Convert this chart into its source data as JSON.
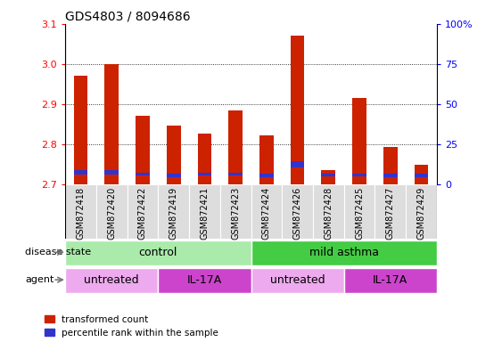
{
  "title": "GDS4803 / 8094686",
  "samples": [
    "GSM872418",
    "GSM872420",
    "GSM872422",
    "GSM872419",
    "GSM872421",
    "GSM872423",
    "GSM872424",
    "GSM872426",
    "GSM872428",
    "GSM872425",
    "GSM872427",
    "GSM872429"
  ],
  "red_values": [
    2.97,
    3.0,
    2.87,
    2.845,
    2.825,
    2.885,
    2.822,
    3.07,
    2.735,
    2.915,
    2.793,
    2.748
  ],
  "blue_bottom": [
    2.724,
    2.724,
    2.721,
    2.717,
    2.721,
    2.721,
    2.717,
    2.741,
    2.719,
    2.719,
    2.717,
    2.717
  ],
  "blue_heights": [
    0.01,
    0.01,
    0.008,
    0.01,
    0.008,
    0.008,
    0.008,
    0.015,
    0.008,
    0.008,
    0.01,
    0.008
  ],
  "y_min": 2.7,
  "y_max": 3.1,
  "y_ticks_red": [
    2.7,
    2.8,
    2.9,
    3.0,
    3.1
  ],
  "y_ticks_blue": [
    0,
    25,
    50,
    75,
    100
  ],
  "bar_color": "#cc2200",
  "blue_color": "#3333cc",
  "grid_lines": [
    2.8,
    2.9,
    3.0
  ],
  "disease_state_groups": [
    {
      "label": "control",
      "start": 0,
      "end": 6,
      "color": "#aaeaaa"
    },
    {
      "label": "mild asthma",
      "start": 6,
      "end": 12,
      "color": "#44cc44"
    }
  ],
  "agent_groups": [
    {
      "label": "untreated",
      "start": 0,
      "end": 3,
      "color": "#eeaaee"
    },
    {
      "label": "IL-17A",
      "start": 3,
      "end": 6,
      "color": "#cc44cc"
    },
    {
      "label": "untreated",
      "start": 6,
      "end": 9,
      "color": "#eeaaee"
    },
    {
      "label": "IL-17A",
      "start": 9,
      "end": 12,
      "color": "#cc44cc"
    }
  ],
  "legend_red": "transformed count",
  "legend_blue": "percentile rank within the sample",
  "label_disease_state": "disease state",
  "label_agent": "agent",
  "bar_width": 0.45,
  "tick_box_color": "#dddddd",
  "figsize": [
    5.63,
    3.84
  ],
  "dpi": 100
}
